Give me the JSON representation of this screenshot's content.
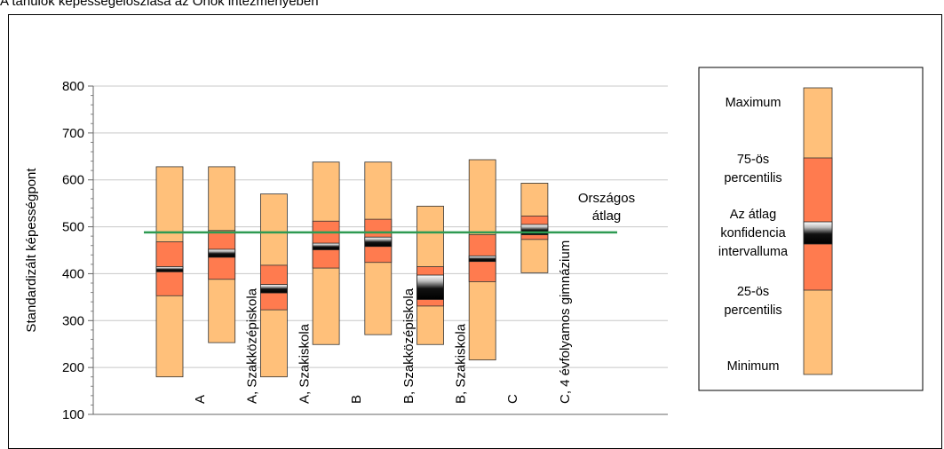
{
  "title": "A tanulók képességeloszlása az Önök intézményében",
  "chart_data": {
    "type": "box",
    "ylabel": "Standardizált képességpont",
    "ylim": [
      100,
      800
    ],
    "yticks": [
      100,
      200,
      300,
      400,
      500,
      600,
      700,
      800
    ],
    "grid": true,
    "categories": [
      "A",
      "A, Szakközépiskola",
      "A, Szakiskola",
      "B",
      "B, Szakközépiskola",
      "B, Szakiskola",
      "C",
      "C, 4 évfolyamos gimnázium"
    ],
    "min": [
      180,
      253,
      180,
      249,
      270,
      249,
      216,
      402
    ],
    "p25": [
      353,
      388,
      323,
      412,
      424,
      331,
      383,
      473
    ],
    "ci_low": [
      404,
      435,
      359,
      451,
      458,
      345,
      426,
      483
    ],
    "mean": [
      411,
      445,
      370,
      458,
      469,
      372,
      433,
      494
    ],
    "ci_high": [
      415,
      452,
      377,
      465,
      478,
      397,
      438,
      505
    ],
    "p75": [
      468,
      492,
      418,
      512,
      516,
      415,
      483,
      523
    ],
    "max": [
      628,
      628,
      570,
      638,
      638,
      544,
      643,
      593
    ],
    "national_average": 488,
    "national_average_label": [
      "Országos",
      "átlag"
    ],
    "legend": {
      "position": "right",
      "labels": [
        {
          "id": "maximum",
          "lines": [
            "Maximum"
          ]
        },
        {
          "id": "p75",
          "lines": [
            "75-ös",
            "percentilis"
          ]
        },
        {
          "id": "ci",
          "lines": [
            "Az átlag",
            "konfidencia",
            "intervalluma"
          ]
        },
        {
          "id": "p25",
          "lines": [
            "25-ös",
            "percentilis"
          ]
        },
        {
          "id": "minimum",
          "lines": [
            "Minimum"
          ]
        }
      ]
    },
    "colors": {
      "outer": "#FFC07A",
      "inner": "#FF7B4F",
      "ci_dark": "#111111",
      "national_line": "#2E9A52",
      "grid": "#C8C8C8"
    }
  }
}
